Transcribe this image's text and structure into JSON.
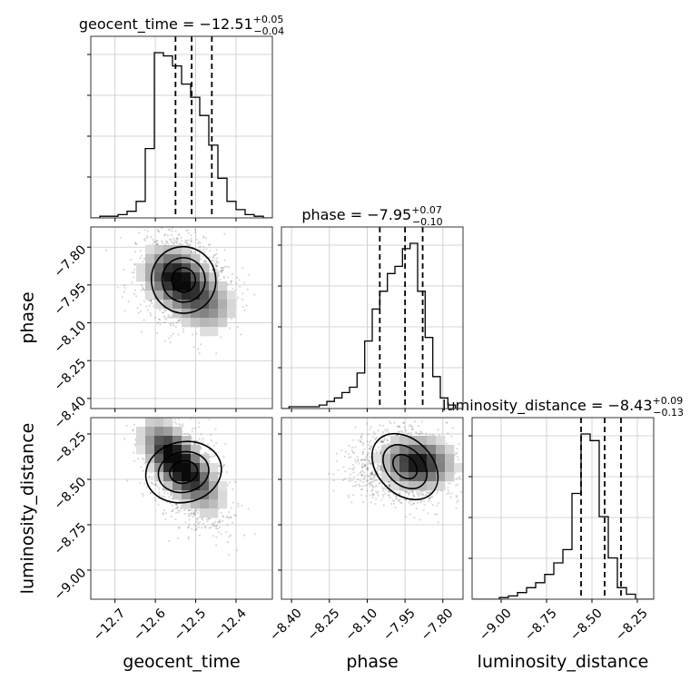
{
  "chart_data": {
    "type": "corner",
    "parameters": [
      {
        "name": "geocent_time",
        "axis_label": "geocent_time",
        "range": [
          -12.76,
          -12.31
        ],
        "ticks": [
          -12.7,
          -12.6,
          -12.5,
          -12.4
        ],
        "tick_labels": [
          "−12.7",
          "−12.6",
          "−12.5",
          "−12.4"
        ],
        "title_prefix": "geocent_time = ",
        "median": "−12.51",
        "plus": "+0.05",
        "minus": "−0.04",
        "quantiles": [
          -12.55,
          -12.51,
          -12.46
        ]
      },
      {
        "name": "phase",
        "axis_label": "phase",
        "range": [
          -8.44,
          -7.72
        ],
        "ticks": [
          -8.4,
          -8.25,
          -8.1,
          -7.95,
          -7.8
        ],
        "tick_labels": [
          "−8.40",
          "−8.25",
          "−8.10",
          "−7.95",
          "−7.80"
        ],
        "title_prefix": "phase = ",
        "median": "−7.95",
        "plus": "+0.07",
        "minus": "−0.10",
        "quantiles": [
          -8.05,
          -7.95,
          -7.88
        ]
      },
      {
        "name": "luminosity_distance",
        "axis_label": "luminosity_distance",
        "range": [
          -9.16,
          -8.16
        ],
        "ticks": [
          -9.0,
          -8.75,
          -8.5,
          -8.25
        ],
        "tick_labels": [
          "−9.00",
          "−8.75",
          "−8.50",
          "−8.25"
        ],
        "title_prefix": "luminosity_distance = ",
        "median": "−8.43",
        "plus": "+0.09",
        "minus": "−0.13",
        "quantiles": [
          -8.56,
          -8.43,
          -8.34
        ]
      }
    ],
    "histograms": [
      {
        "edges_from": -12.76,
        "edges_to": -12.31,
        "counts": [
          0,
          1,
          1,
          2,
          4,
          10,
          42,
          100,
          98,
          92,
          81,
          73,
          62,
          44,
          24,
          10,
          5,
          2,
          1,
          0
        ]
      },
      {
        "edges_from": -8.44,
        "edges_to": -7.72,
        "counts": [
          0,
          1,
          1,
          1,
          1,
          2,
          4,
          6,
          9,
          12,
          20,
          38,
          56,
          66,
          76,
          80,
          90,
          93,
          66,
          40,
          18,
          6,
          2,
          0
        ]
      },
      {
        "edges_from": -9.16,
        "edges_to": -8.16,
        "counts": [
          0,
          0,
          0,
          1,
          2,
          4,
          7,
          10,
          15,
          22,
          30,
          64,
          100,
          96,
          50,
          25,
          7,
          3,
          0,
          0
        ]
      }
    ],
    "pairs": [
      {
        "x": 0,
        "y": 1,
        "mean": [
          -12.53,
          -7.93
        ],
        "sd": [
          0.055,
          0.085
        ],
        "rho": -0.2,
        "modes": [
          [
            -12.55,
            -7.92,
            1.0
          ],
          [
            -12.48,
            -8.02,
            0.55
          ]
        ]
      },
      {
        "x": 0,
        "y": 2,
        "mean": [
          -12.53,
          -8.46
        ],
        "sd": [
          0.05,
          0.14
        ],
        "rho": -0.55,
        "modes": [
          [
            -12.56,
            -8.38,
            1.0
          ],
          [
            -12.5,
            -8.5,
            0.6
          ]
        ]
      },
      {
        "x": 1,
        "y": 2,
        "mean": [
          -7.95,
          -8.43
        ],
        "sd": [
          0.1,
          0.1
        ],
        "rho": -0.05,
        "modes": [
          [
            -7.9,
            -8.41,
            1.0
          ]
        ]
      }
    ],
    "grid": true,
    "contour_levels": 3
  }
}
